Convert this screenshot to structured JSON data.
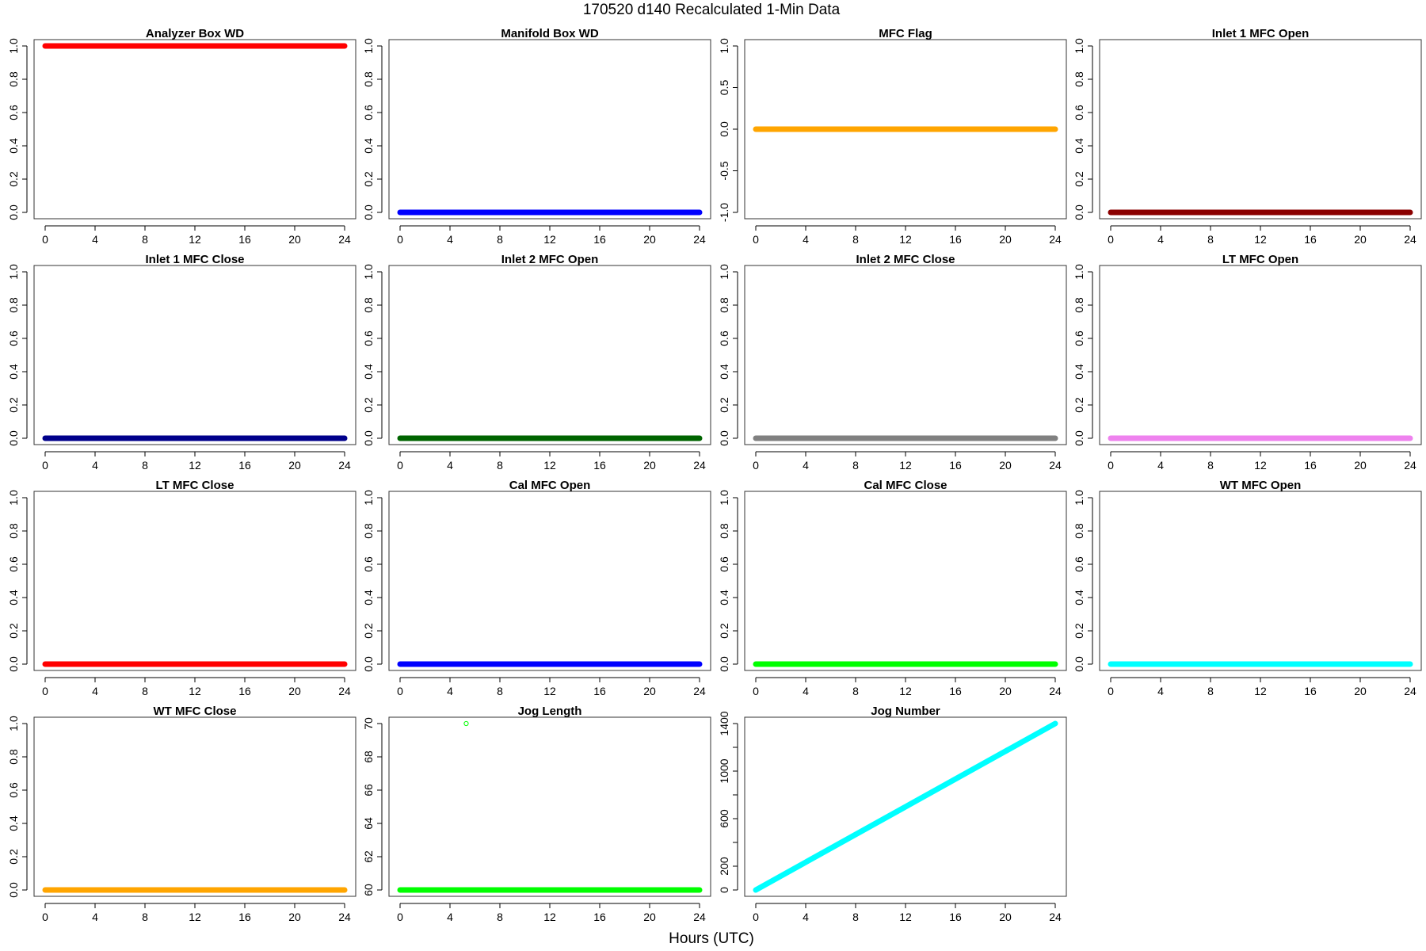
{
  "page": {
    "title": "170520   d140   Recalculated 1-Min Data",
    "xlabel": "Hours (UTC)"
  },
  "chart_data": [
    {
      "type": "scatter",
      "title": "Analyzer Box WD",
      "color": "#ff0000",
      "x_range": [
        0,
        24
      ],
      "y_range": [
        0,
        1
      ],
      "x_ticks": [
        "0",
        "4",
        "8",
        "12",
        "16",
        "20",
        "24"
      ],
      "y_ticks": [
        "0.0",
        "0.2",
        "0.4",
        "0.6",
        "0.8",
        "1.0"
      ],
      "series": [
        {
          "x": [
            0,
            24
          ],
          "y": [
            1.0,
            1.0
          ]
        }
      ]
    },
    {
      "type": "scatter",
      "title": "Manifold Box WD",
      "color": "#0000ff",
      "x_range": [
        0,
        24
      ],
      "y_range": [
        0,
        1
      ],
      "x_ticks": [
        "0",
        "4",
        "8",
        "12",
        "16",
        "20",
        "24"
      ],
      "y_ticks": [
        "0.0",
        "0.2",
        "0.4",
        "0.6",
        "0.8",
        "1.0"
      ],
      "series": [
        {
          "x": [
            0,
            24
          ],
          "y": [
            0.0,
            0.0
          ]
        }
      ]
    },
    {
      "type": "scatter",
      "title": "MFC Flag",
      "color": "#ffa500",
      "x_range": [
        0,
        24
      ],
      "y_range": [
        -1,
        1
      ],
      "x_ticks": [
        "0",
        "4",
        "8",
        "12",
        "16",
        "20",
        "24"
      ],
      "y_ticks": [
        "-1.0",
        "-0.5",
        "0.0",
        "0.5",
        "1.0"
      ],
      "series": [
        {
          "x": [
            0,
            24
          ],
          "y": [
            0.0,
            0.0
          ]
        }
      ]
    },
    {
      "type": "scatter",
      "title": "Inlet 1 MFC Open",
      "color": "#8b0000",
      "x_range": [
        0,
        24
      ],
      "y_range": [
        0,
        1
      ],
      "x_ticks": [
        "0",
        "4",
        "8",
        "12",
        "16",
        "20",
        "24"
      ],
      "y_ticks": [
        "0.0",
        "0.2",
        "0.4",
        "0.6",
        "0.8",
        "1.0"
      ],
      "series": [
        {
          "x": [
            0,
            24
          ],
          "y": [
            0.0,
            0.0
          ]
        }
      ]
    },
    {
      "type": "scatter",
      "title": "Inlet 1 MFC Close",
      "color": "#00008b",
      "x_range": [
        0,
        24
      ],
      "y_range": [
        0,
        1
      ],
      "x_ticks": [
        "0",
        "4",
        "8",
        "12",
        "16",
        "20",
        "24"
      ],
      "y_ticks": [
        "0.0",
        "0.2",
        "0.4",
        "0.6",
        "0.8",
        "1.0"
      ],
      "series": [
        {
          "x": [
            0,
            24
          ],
          "y": [
            0.0,
            0.0
          ]
        }
      ]
    },
    {
      "type": "scatter",
      "title": "Inlet 2 MFC Open",
      "color": "#006400",
      "x_range": [
        0,
        24
      ],
      "y_range": [
        0,
        1
      ],
      "x_ticks": [
        "0",
        "4",
        "8",
        "12",
        "16",
        "20",
        "24"
      ],
      "y_ticks": [
        "0.0",
        "0.2",
        "0.4",
        "0.6",
        "0.8",
        "1.0"
      ],
      "series": [
        {
          "x": [
            0,
            24
          ],
          "y": [
            0.0,
            0.0
          ]
        }
      ]
    },
    {
      "type": "scatter",
      "title": "Inlet 2 MFC Close",
      "color": "#808080",
      "x_range": [
        0,
        24
      ],
      "y_range": [
        0,
        1
      ],
      "x_ticks": [
        "0",
        "4",
        "8",
        "12",
        "16",
        "20",
        "24"
      ],
      "y_ticks": [
        "0.0",
        "0.2",
        "0.4",
        "0.6",
        "0.8",
        "1.0"
      ],
      "series": [
        {
          "x": [
            0,
            24
          ],
          "y": [
            0.0,
            0.0
          ]
        }
      ]
    },
    {
      "type": "scatter",
      "title": "LT MFC Open",
      "color": "#ee82ee",
      "x_range": [
        0,
        24
      ],
      "y_range": [
        0,
        1
      ],
      "x_ticks": [
        "0",
        "4",
        "8",
        "12",
        "16",
        "20",
        "24"
      ],
      "y_ticks": [
        "0.0",
        "0.2",
        "0.4",
        "0.6",
        "0.8",
        "1.0"
      ],
      "series": [
        {
          "x": [
            0,
            24
          ],
          "y": [
            0.0,
            0.0
          ]
        }
      ]
    },
    {
      "type": "scatter",
      "title": "LT MFC Close",
      "color": "#ff0000",
      "x_range": [
        0,
        24
      ],
      "y_range": [
        0,
        1
      ],
      "x_ticks": [
        "0",
        "4",
        "8",
        "12",
        "16",
        "20",
        "24"
      ],
      "y_ticks": [
        "0.0",
        "0.2",
        "0.4",
        "0.6",
        "0.8",
        "1.0"
      ],
      "series": [
        {
          "x": [
            0,
            24
          ],
          "y": [
            0.0,
            0.0
          ]
        }
      ]
    },
    {
      "type": "scatter",
      "title": "Cal MFC Open",
      "color": "#0000ff",
      "x_range": [
        0,
        24
      ],
      "y_range": [
        0,
        1
      ],
      "x_ticks": [
        "0",
        "4",
        "8",
        "12",
        "16",
        "20",
        "24"
      ],
      "y_ticks": [
        "0.0",
        "0.2",
        "0.4",
        "0.6",
        "0.8",
        "1.0"
      ],
      "series": [
        {
          "x": [
            0,
            24
          ],
          "y": [
            0.0,
            0.0
          ]
        }
      ]
    },
    {
      "type": "scatter",
      "title": "Cal MFC Close",
      "color": "#00ff00",
      "x_range": [
        0,
        24
      ],
      "y_range": [
        0,
        1
      ],
      "x_ticks": [
        "0",
        "4",
        "8",
        "12",
        "16",
        "20",
        "24"
      ],
      "y_ticks": [
        "0.0",
        "0.2",
        "0.4",
        "0.6",
        "0.8",
        "1.0"
      ],
      "series": [
        {
          "x": [
            0,
            24
          ],
          "y": [
            0.0,
            0.0
          ]
        }
      ]
    },
    {
      "type": "scatter",
      "title": "WT MFC Open",
      "color": "#00ffff",
      "x_range": [
        0,
        24
      ],
      "y_range": [
        0,
        1
      ],
      "x_ticks": [
        "0",
        "4",
        "8",
        "12",
        "16",
        "20",
        "24"
      ],
      "y_ticks": [
        "0.0",
        "0.2",
        "0.4",
        "0.6",
        "0.8",
        "1.0"
      ],
      "series": [
        {
          "x": [
            0,
            24
          ],
          "y": [
            0.0,
            0.0
          ]
        }
      ]
    },
    {
      "type": "scatter",
      "title": "WT MFC Close",
      "color": "#ffa500",
      "x_range": [
        0,
        24
      ],
      "y_range": [
        0,
        1
      ],
      "x_ticks": [
        "0",
        "4",
        "8",
        "12",
        "16",
        "20",
        "24"
      ],
      "y_ticks": [
        "0.0",
        "0.2",
        "0.4",
        "0.6",
        "0.8",
        "1.0"
      ],
      "series": [
        {
          "x": [
            0,
            24
          ],
          "y": [
            0.0,
            0.0
          ]
        }
      ]
    },
    {
      "type": "scatter",
      "title": "Jog Length",
      "color": "#00ff00",
      "x_range": [
        0,
        24
      ],
      "y_range": [
        60,
        70
      ],
      "x_ticks": [
        "0",
        "4",
        "8",
        "12",
        "16",
        "20",
        "24"
      ],
      "y_ticks": [
        "60",
        "62",
        "64",
        "66",
        "68",
        "70"
      ],
      "series": [
        {
          "x": [
            0,
            24
          ],
          "y": [
            60,
            60
          ]
        }
      ],
      "outliers": [
        {
          "x": 5.3,
          "y": 70
        }
      ]
    },
    {
      "type": "scatter",
      "title": "Jog Number",
      "color": "#00ffff",
      "x_range": [
        0,
        24
      ],
      "y_range": [
        0,
        1400
      ],
      "x_ticks": [
        "0",
        "4",
        "8",
        "12",
        "16",
        "20",
        "24"
      ],
      "y_ticks": [
        "0",
        "200",
        "600",
        "1000",
        "1400"
      ],
      "y_minor": [
        400,
        800,
        1200
      ],
      "series": [
        {
          "x": [
            0,
            24
          ],
          "y": [
            0,
            1400
          ]
        }
      ]
    }
  ]
}
